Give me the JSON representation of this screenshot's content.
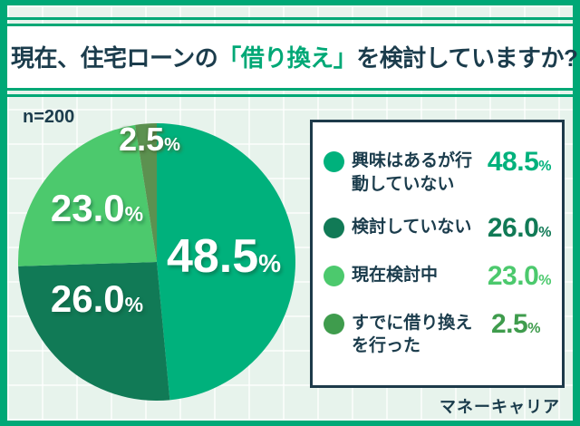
{
  "frame": {
    "border_color": "#00a876",
    "background_color": "#e7f3ec"
  },
  "header": {
    "title_pre": "現在、住宅ローンの",
    "title_highlight": "「借り換え」",
    "title_post": "を検討していますか?",
    "highlight_color": "#00a876",
    "text_color": "#1b3c4c"
  },
  "sample_label": "n=200",
  "chart_data": {
    "type": "pie",
    "title": "現在、住宅ローンの「借り換え」を検討していますか?",
    "sample_size": 200,
    "start_angle_deg": 0,
    "direction": "clockwise",
    "categories": [
      "興味はあるが行動していない",
      "検討していない",
      "現在検討中",
      "すでに借り換えを行った"
    ],
    "values": [
      48.5,
      26.0,
      23.0,
      2.5
    ],
    "unit": "%",
    "slice_colors": [
      "#00b17c",
      "#117a56",
      "#4cc96d",
      "#5c9150"
    ],
    "slice_labels": [
      "48.5",
      "26.0",
      "23.0",
      "2.5"
    ],
    "legend_position": "right"
  },
  "legend": {
    "items": [
      {
        "label": "興味はあるが行動していない",
        "value": "48.5",
        "unit": "%",
        "color": "#00b17c"
      },
      {
        "label": "検討していない",
        "value": "26.0",
        "unit": "%",
        "color": "#117a56"
      },
      {
        "label": "現在検討中",
        "value": "23.0",
        "unit": "%",
        "color": "#4cc96d"
      },
      {
        "label": "すでに借り換えを行った",
        "value": "2.5",
        "unit": "%",
        "color": "#3f9c4d"
      }
    ]
  },
  "footer": {
    "brand": "マネーキャリア"
  }
}
